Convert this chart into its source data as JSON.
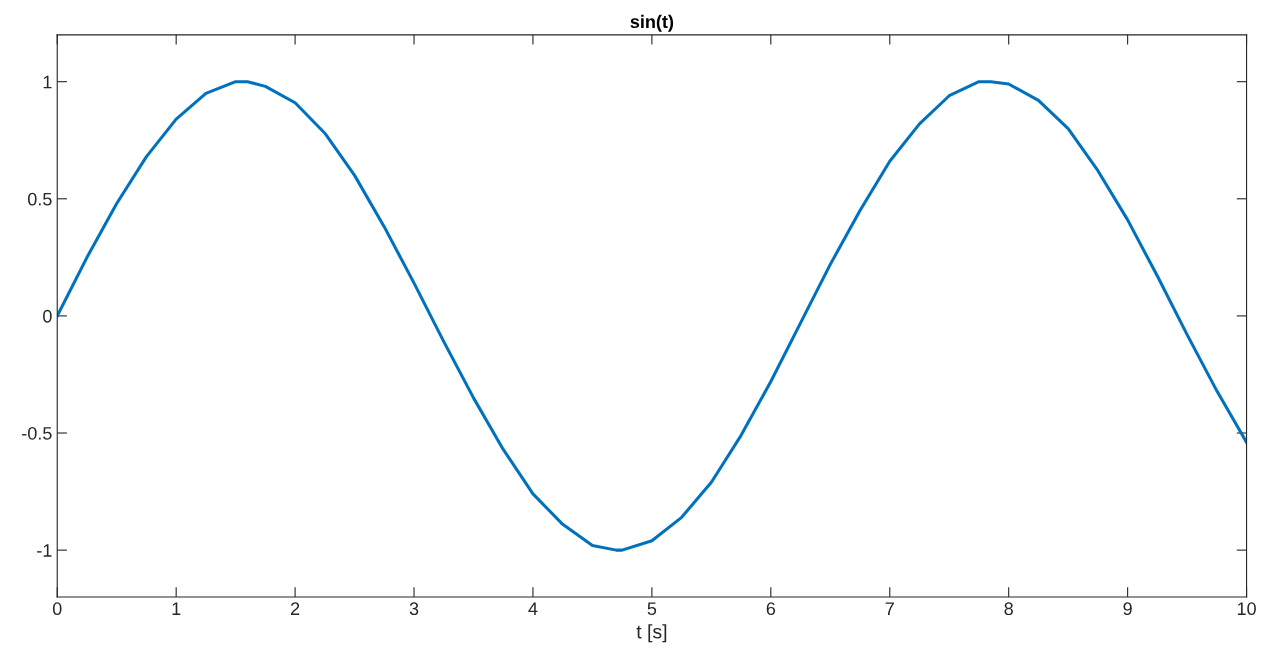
{
  "chart_data": {
    "type": "line",
    "title": "sin(t)",
    "xlabel": "t [s]",
    "x": [
      0,
      0.25,
      0.5,
      0.75,
      1,
      1.25,
      1.5,
      1.6,
      1.75,
      2,
      2.25,
      2.5,
      2.75,
      3,
      3.25,
      3.5,
      3.75,
      4,
      4.25,
      4.5,
      4.7,
      4.75,
      5,
      5.25,
      5.5,
      5.75,
      6,
      6.25,
      6.5,
      6.75,
      7,
      7.25,
      7.5,
      7.75,
      7.85,
      8,
      8.25,
      8.5,
      8.75,
      9,
      9.25,
      9.5,
      9.75,
      10
    ],
    "series": [
      {
        "color": "#0072bd",
        "values": [
          0,
          0.25,
          0.48,
          0.68,
          0.84,
          0.95,
          1.0,
          1.0,
          0.98,
          0.91,
          0.78,
          0.6,
          0.38,
          0.14,
          -0.11,
          -0.35,
          -0.57,
          -0.76,
          -0.89,
          -0.98,
          -1.0,
          -1.0,
          -0.96,
          -0.86,
          -0.71,
          -0.51,
          -0.28,
          -0.03,
          0.22,
          0.45,
          0.66,
          0.82,
          0.94,
          1.0,
          1.0,
          0.99,
          0.92,
          0.8,
          0.62,
          0.41,
          0.17,
          -0.08,
          -0.32,
          -0.54
        ]
      }
    ],
    "xlim": [
      0,
      10
    ],
    "xticks": [
      0,
      1,
      2,
      3,
      4,
      5,
      6,
      7,
      8,
      9,
      10
    ],
    "ylim": [
      -1.2,
      1.2
    ],
    "yticks": [
      -1,
      -0.5,
      0,
      0.5,
      1
    ],
    "grid": false,
    "legend": false,
    "marker": "none",
    "line_style": "solid"
  }
}
